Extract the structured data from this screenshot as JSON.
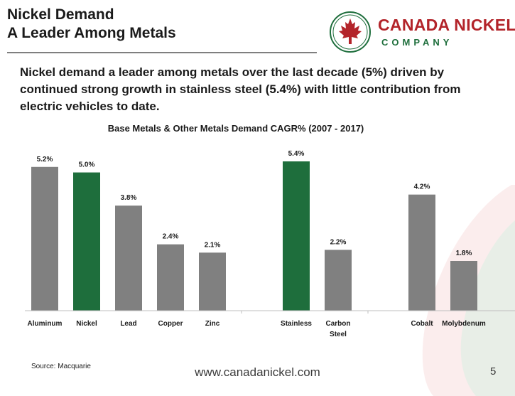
{
  "header": {
    "title_line1": "Nickel Demand",
    "title_line2": "A Leader Among Metals"
  },
  "logo": {
    "name": "CANADA NICKEL",
    "sub": "COMPANY",
    "red": "#b3242a",
    "green": "#1e6e3c"
  },
  "subtitle": "Nickel demand a leader among metals over the last decade (5%) driven by continued strong growth in stainless steel (5.4%) with little contribution from electric vehicles to date.",
  "footer": {
    "source": "Source: Macquarie",
    "website": "www.canadanickel.com",
    "page": "5"
  },
  "chart_data": {
    "type": "bar",
    "title": "Base Metals & Other Metals Demand CAGR% (2007 - 2017)",
    "xlabel": "",
    "ylabel": "",
    "ylim": [
      0,
      5.4
    ],
    "grid": false,
    "legend": "none",
    "groups": [
      [
        "Aluminum",
        "Nickel",
        "Lead",
        "Copper",
        "Zinc"
      ],
      [
        "Stainless",
        "Carbon Steel"
      ],
      [
        "Cobalt",
        "Molybdenum"
      ]
    ],
    "categories": [
      "Aluminum",
      "Nickel",
      "Lead",
      "Copper",
      "Zinc",
      "Stainless",
      "Carbon Steel",
      "Cobalt",
      "Molybdenum"
    ],
    "category_lines": [
      [
        "Aluminum"
      ],
      [
        "Nickel"
      ],
      [
        "Lead"
      ],
      [
        "Copper"
      ],
      [
        "Zinc"
      ],
      [
        "Stainless"
      ],
      [
        "Carbon",
        "Steel"
      ],
      [
        "Cobalt"
      ],
      [
        "Molybdenum"
      ]
    ],
    "values": [
      5.2,
      5.0,
      3.8,
      2.4,
      2.1,
      5.4,
      2.2,
      4.2,
      1.8
    ],
    "data_labels": [
      "5.2%",
      "5.0%",
      "3.8%",
      "2.4%",
      "2.1%",
      "5.4%",
      "2.2%",
      "4.2%",
      "1.8%"
    ],
    "highlighted": [
      "Nickel",
      "Stainless"
    ],
    "colors": {
      "default": "#808080",
      "highlight": "#1e6e3c",
      "axis": "#bfbfbf"
    }
  }
}
